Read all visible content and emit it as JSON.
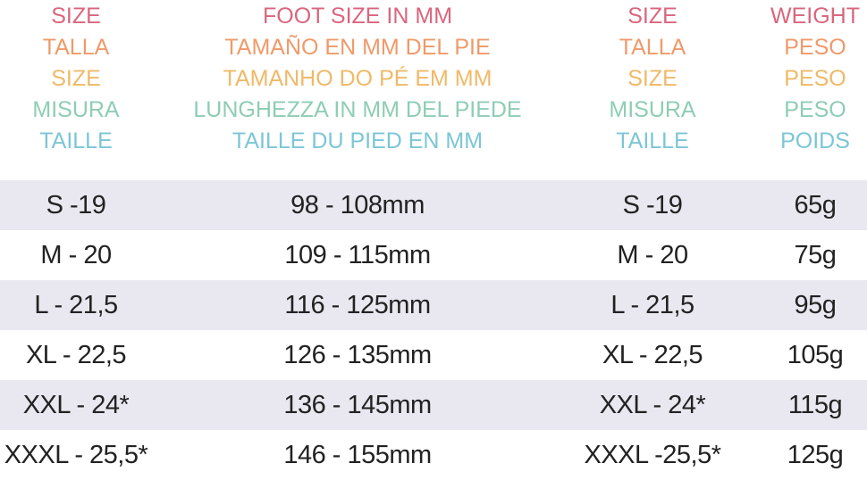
{
  "header_rows": [
    {
      "color": "#d9667e",
      "cells": [
        "SIZE",
        "FOOT SIZE IN MM",
        "SIZE",
        "WEIGHT"
      ]
    },
    {
      "color": "#ef9a6a",
      "cells": [
        "TALLA",
        "TAMAÑO EN MM DEL PIE",
        "TALLA",
        "PESO"
      ]
    },
    {
      "color": "#f0b968",
      "cells": [
        "SIZE",
        "TAMANHO DO PÉ EM MM",
        "SIZE",
        "PESO"
      ]
    },
    {
      "color": "#8ecdb5",
      "cells": [
        "MISURA",
        "LUNGHEZZA IN MM DEL PIEDE",
        "MISURA",
        "PESO"
      ]
    },
    {
      "color": "#7cc6d6",
      "cells": [
        "TAILLE",
        "TAILLE DU PIED EN MM",
        "TAILLE",
        "POIDS"
      ]
    }
  ],
  "rows": [
    [
      "S -19",
      "98 - 108mm",
      "S -19",
      "65g"
    ],
    [
      "M - 20",
      "109 - 115mm",
      "M - 20",
      "75g"
    ],
    [
      "L - 21,5",
      "116 - 125mm",
      "L - 21,5",
      "95g"
    ],
    [
      "XL - 22,5",
      "126 - 135mm",
      "XL - 22,5",
      "105g"
    ],
    [
      "XXL - 24*",
      "136 - 145mm",
      "XXL - 24*",
      "115g"
    ],
    [
      "XXXL - 25,5*",
      "146 - 155mm",
      "XXXL -25,5*",
      "125g"
    ]
  ],
  "stripe_color": "#e9e8f0"
}
